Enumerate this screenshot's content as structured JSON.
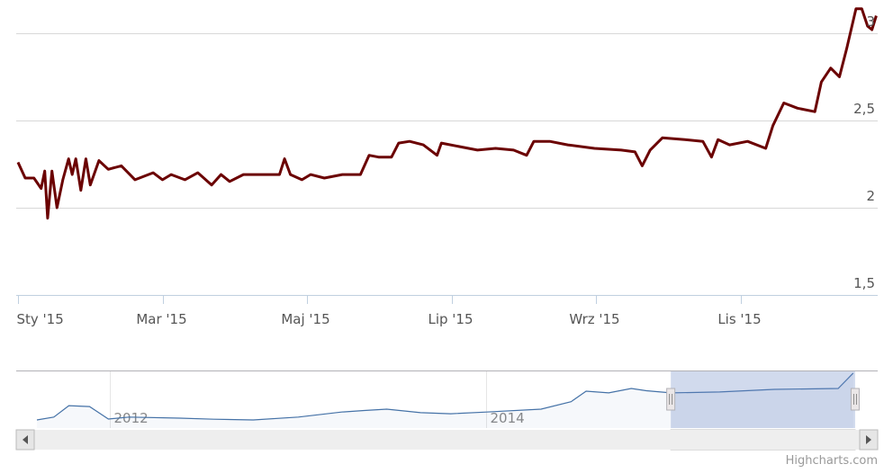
{
  "chart_data": [
    {
      "type": "line",
      "x": [
        0,
        0.1,
        0.22,
        0.32,
        0.37,
        0.41,
        0.47,
        0.54,
        0.62,
        0.7,
        0.75,
        0.8,
        0.87,
        0.94,
        1.0,
        1.12,
        1.25,
        1.43,
        1.62,
        1.87,
        2.0,
        2.12,
        2.31,
        2.49,
        2.68,
        2.81,
        2.93,
        3.12,
        3.37,
        3.62,
        3.69,
        3.77,
        3.93,
        4.05,
        4.24,
        4.49,
        4.74,
        4.86,
        4.99,
        5.17,
        5.27,
        5.42,
        5.61,
        5.8,
        5.86,
        6.11,
        6.36,
        6.61,
        6.86,
        7.04,
        7.14,
        7.36,
        7.61,
        7.98,
        8.35,
        8.54,
        8.64,
        8.75,
        8.92,
        9.23,
        9.48,
        9.6,
        9.69,
        9.85,
        10.1,
        10.35,
        10.45,
        10.6,
        10.79,
        11.03,
        11.12,
        11.25,
        11.37,
        11.47,
        11.6,
        11.68,
        11.76,
        11.82,
        11.88
      ],
      "series": [
        {
          "color": "#6b0000",
          "values": [
            2.26,
            2.17,
            2.17,
            2.11,
            2.21,
            1.94,
            2.21,
            2.0,
            2.16,
            2.28,
            2.19,
            2.28,
            2.1,
            2.28,
            2.13,
            2.27,
            2.22,
            2.24,
            2.16,
            2.2,
            2.16,
            2.19,
            2.16,
            2.2,
            2.13,
            2.19,
            2.15,
            2.19,
            2.19,
            2.19,
            2.28,
            2.19,
            2.16,
            2.19,
            2.17,
            2.19,
            2.19,
            2.3,
            2.29,
            2.29,
            2.37,
            2.38,
            2.36,
            2.3,
            2.37,
            2.35,
            2.33,
            2.34,
            2.33,
            2.3,
            2.38,
            2.38,
            2.36,
            2.34,
            2.33,
            2.32,
            2.24,
            2.33,
            2.4,
            2.39,
            2.38,
            2.29,
            2.39,
            2.36,
            2.38,
            2.34,
            2.47,
            2.6,
            2.57,
            2.55,
            2.72,
            2.8,
            2.75,
            2.91,
            3.14,
            3.14,
            3.04,
            3.02,
            3.1
          ]
        }
      ],
      "xlim": [
        0,
        11.9
      ],
      "xticks": [
        {
          "value": 0,
          "label": "Sty '15"
        },
        {
          "value": 2,
          "label": "Mar '15"
        },
        {
          "value": 4,
          "label": "Maj '15"
        },
        {
          "value": 6,
          "label": "Lip '15"
        },
        {
          "value": 8,
          "label": "Wrz '15"
        },
        {
          "value": 10,
          "label": "Lis '15"
        }
      ],
      "ylim": [
        1.5,
        3.19
      ],
      "yticks": [
        {
          "value": 1.5,
          "label": "1,5"
        },
        2,
        {
          "value": 2.5,
          "label": "2,5"
        },
        3
      ],
      "grid": true
    },
    {
      "type": "area",
      "x": [
        2011.61,
        2011.7,
        2011.78,
        2011.89,
        2011.99,
        2012.1,
        2012.37,
        2012.55,
        2012.76,
        2013.0,
        2013.23,
        2013.35,
        2013.47,
        2013.65,
        2013.81,
        2014.0,
        2014.29,
        2014.45,
        2014.53,
        2014.65,
        2014.77,
        2014.85,
        2014.98,
        2015.24,
        2015.53,
        2015.87,
        2015.95
      ],
      "series": [
        {
          "color": "#4572a7",
          "values": [
            0.97,
            1.1,
            1.62,
            1.58,
            1.01,
            1.1,
            1.05,
            1.0,
            0.97,
            1.1,
            1.33,
            1.4,
            1.46,
            1.3,
            1.25,
            1.33,
            1.46,
            1.8,
            2.28,
            2.2,
            2.4,
            2.3,
            2.2,
            2.24,
            2.36,
            2.4,
            3.1
          ]
        }
      ],
      "xlim": [
        2011.5,
        2016.08
      ],
      "xticks": [
        2012,
        2014
      ],
      "ylim": [
        0.6,
        3.22
      ],
      "selection": [
        2014.98,
        2015.96
      ]
    },
    {
      "type": "credits",
      "text": "Highcharts.com"
    }
  ]
}
